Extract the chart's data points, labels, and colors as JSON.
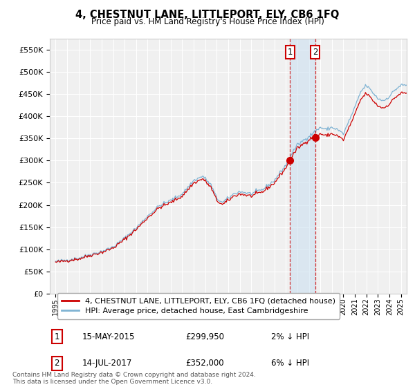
{
  "title": "4, CHESTNUT LANE, LITTLEPORT, ELY, CB6 1FQ",
  "subtitle": "Price paid vs. HM Land Registry's House Price Index (HPI)",
  "property_label": "4, CHESTNUT LANE, LITTLEPORT, ELY, CB6 1FQ (detached house)",
  "hpi_label": "HPI: Average price, detached house, East Cambridgeshire",
  "annotation1": {
    "num": "1",
    "date": "15-MAY-2015",
    "price": "£299,950",
    "pct": "2% ↓ HPI",
    "x_year": 2015.37
  },
  "annotation2": {
    "num": "2",
    "date": "14-JUL-2017",
    "price": "£352,000",
    "pct": "6% ↓ HPI",
    "x_year": 2017.54
  },
  "copyright": "Contains HM Land Registry data © Crown copyright and database right 2024.\nThis data is licensed under the Open Government Licence v3.0.",
  "ylim": [
    0,
    575000
  ],
  "yticks": [
    0,
    50000,
    100000,
    150000,
    200000,
    250000,
    300000,
    350000,
    400000,
    450000,
    500000,
    550000
  ],
  "ytick_labels": [
    "£0",
    "£50K",
    "£100K",
    "£150K",
    "£200K",
    "£250K",
    "£300K",
    "£350K",
    "£400K",
    "£450K",
    "£500K",
    "£550K"
  ],
  "xlim_start": 1994.5,
  "xlim_end": 2025.5,
  "xtick_years": [
    1995,
    1996,
    1997,
    1998,
    1999,
    2000,
    2001,
    2002,
    2003,
    2004,
    2005,
    2006,
    2007,
    2008,
    2009,
    2010,
    2011,
    2012,
    2013,
    2014,
    2015,
    2016,
    2017,
    2018,
    2019,
    2020,
    2021,
    2022,
    2023,
    2024,
    2025
  ],
  "property_color": "#cc0000",
  "hpi_color": "#7fb3d3",
  "background_color": "#ffffff",
  "plot_bg_color": "#f0f0f0",
  "grid_color": "#ffffff",
  "sale1_year": 2015.37,
  "sale1_price": 299950,
  "sale2_year": 2017.54,
  "sale2_price": 352000,
  "hpi_anchors_x": [
    1995.0,
    1996.0,
    1997.0,
    1998.0,
    1999.0,
    2000.0,
    2001.0,
    2002.0,
    2003.0,
    2004.0,
    2005.0,
    2006.0,
    2007.0,
    2007.8,
    2008.5,
    2009.0,
    2009.5,
    2010.0,
    2010.5,
    2011.0,
    2012.0,
    2013.0,
    2014.0,
    2015.0,
    2015.5,
    2016.0,
    2016.5,
    2017.0,
    2017.5,
    2018.0,
    2018.5,
    2019.0,
    2019.5,
    2020.0,
    2020.5,
    2021.0,
    2021.5,
    2022.0,
    2022.5,
    2023.0,
    2023.5,
    2024.0,
    2024.5,
    2025.0
  ],
  "hpi_anchors_y": [
    72000,
    76000,
    80000,
    88000,
    95000,
    105000,
    125000,
    148000,
    175000,
    198000,
    210000,
    225000,
    255000,
    265000,
    245000,
    215000,
    205000,
    215000,
    225000,
    230000,
    225000,
    235000,
    255000,
    290000,
    315000,
    335000,
    345000,
    355000,
    365000,
    375000,
    370000,
    375000,
    370000,
    360000,
    390000,
    420000,
    455000,
    470000,
    455000,
    440000,
    435000,
    445000,
    460000,
    470000
  ]
}
